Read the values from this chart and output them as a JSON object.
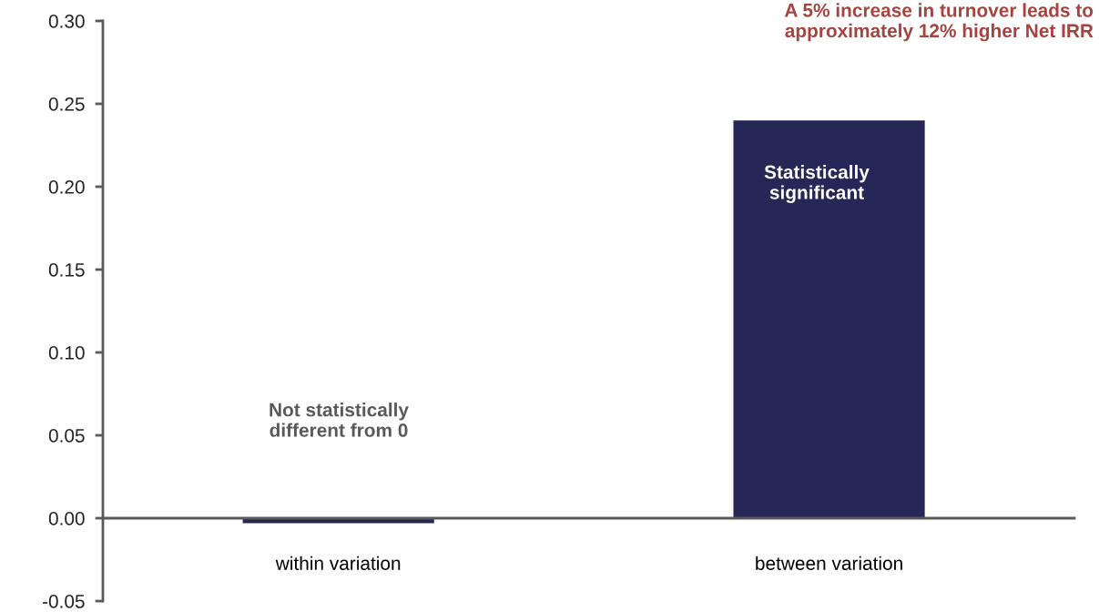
{
  "chart_data": {
    "type": "bar",
    "categories": [
      "within variation",
      "between variation"
    ],
    "values": [
      -0.003,
      0.24
    ],
    "color": "#272757",
    "ylim": [
      -0.05,
      0.3
    ],
    "yticks": [
      {
        "value": -0.05,
        "label": "-0.05"
      },
      {
        "value": 0,
        "label": "0.00"
      },
      {
        "value": 0.05,
        "label": "0.05"
      },
      {
        "value": 0.1,
        "label": "0.10"
      },
      {
        "value": 0.15,
        "label": "0.15"
      },
      {
        "value": 0.2,
        "label": "0.20"
      },
      {
        "value": 0.25,
        "label": "0.25"
      },
      {
        "value": 0.3,
        "label": "0.30"
      }
    ],
    "grid": false,
    "legend": false,
    "annotations": [
      "Not statistically\ndifferent from 0",
      "Statistically\nsignificant",
      "A 5% increase in turnover leads to\napproximately 12% higher Net IRR"
    ]
  }
}
